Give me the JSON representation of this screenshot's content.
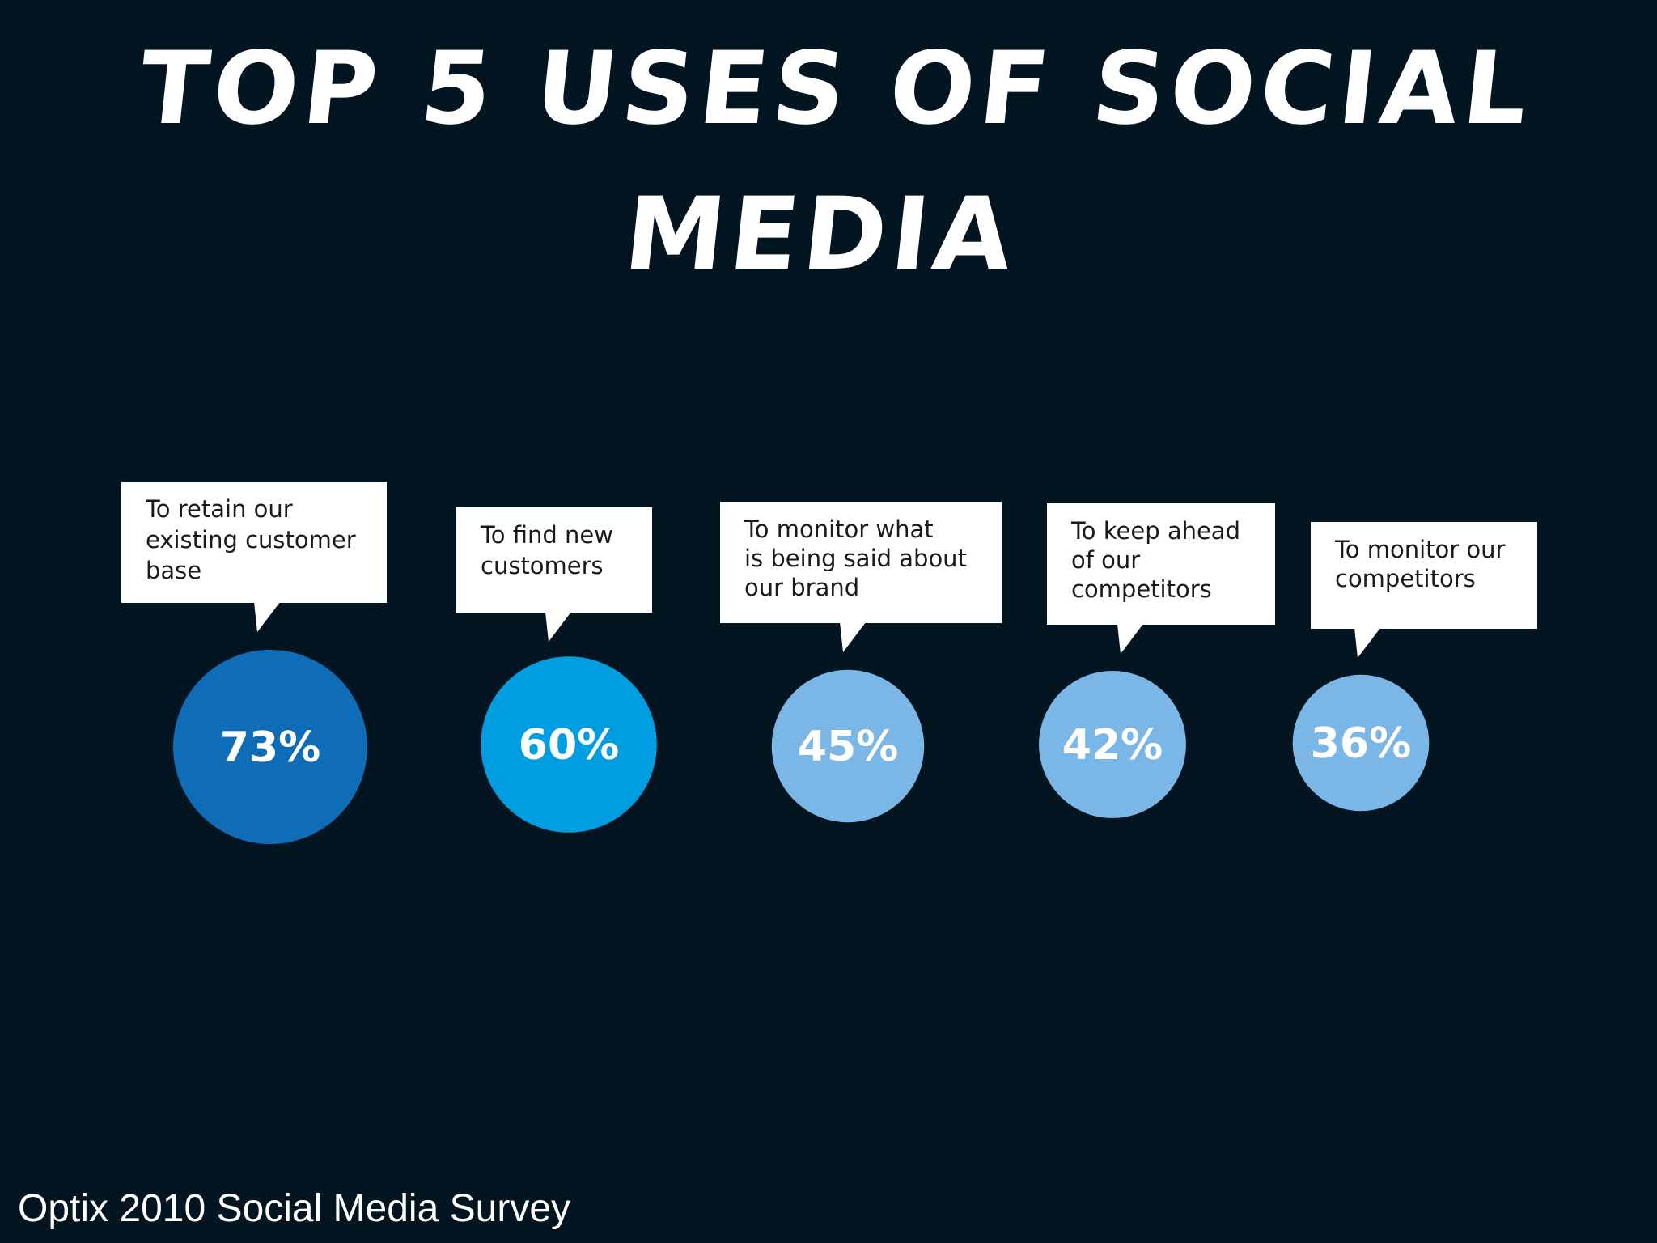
{
  "slide": {
    "title": "Top 5 Uses of Social Media",
    "source": "Optix 2010 Social Media Survey"
  },
  "colors": {
    "background": "#031520",
    "circle_dark": "#0f6cb6",
    "circle_mid": "#009ee0",
    "circle_light": "#7ab6e6",
    "bubble": "#ffffff",
    "bubble_text": "#1a1a1a"
  },
  "chart_data": {
    "type": "bar",
    "title": "Top 5 Uses of Social Media",
    "categories": [
      "To retain our existing customer base",
      "To find new customers",
      "To monitor what is being said about our brand",
      "To keep ahead of our competitors",
      "To monitor our competitors"
    ],
    "label_lines": [
      [
        "To retain our",
        "existing customer",
        "base"
      ],
      [
        "To find new",
        "customers"
      ],
      [
        "To monitor what",
        "is being said about",
        "our brand"
      ],
      [
        "To keep ahead",
        "of our",
        "competitors"
      ],
      [
        "To monitor our",
        "competitors"
      ]
    ],
    "values": [
      73,
      60,
      45,
      42,
      36
    ],
    "value_labels": [
      "73%",
      "60%",
      "45%",
      "42%",
      "36%"
    ],
    "unit": "%",
    "encoding": "circle size proportional to value"
  }
}
